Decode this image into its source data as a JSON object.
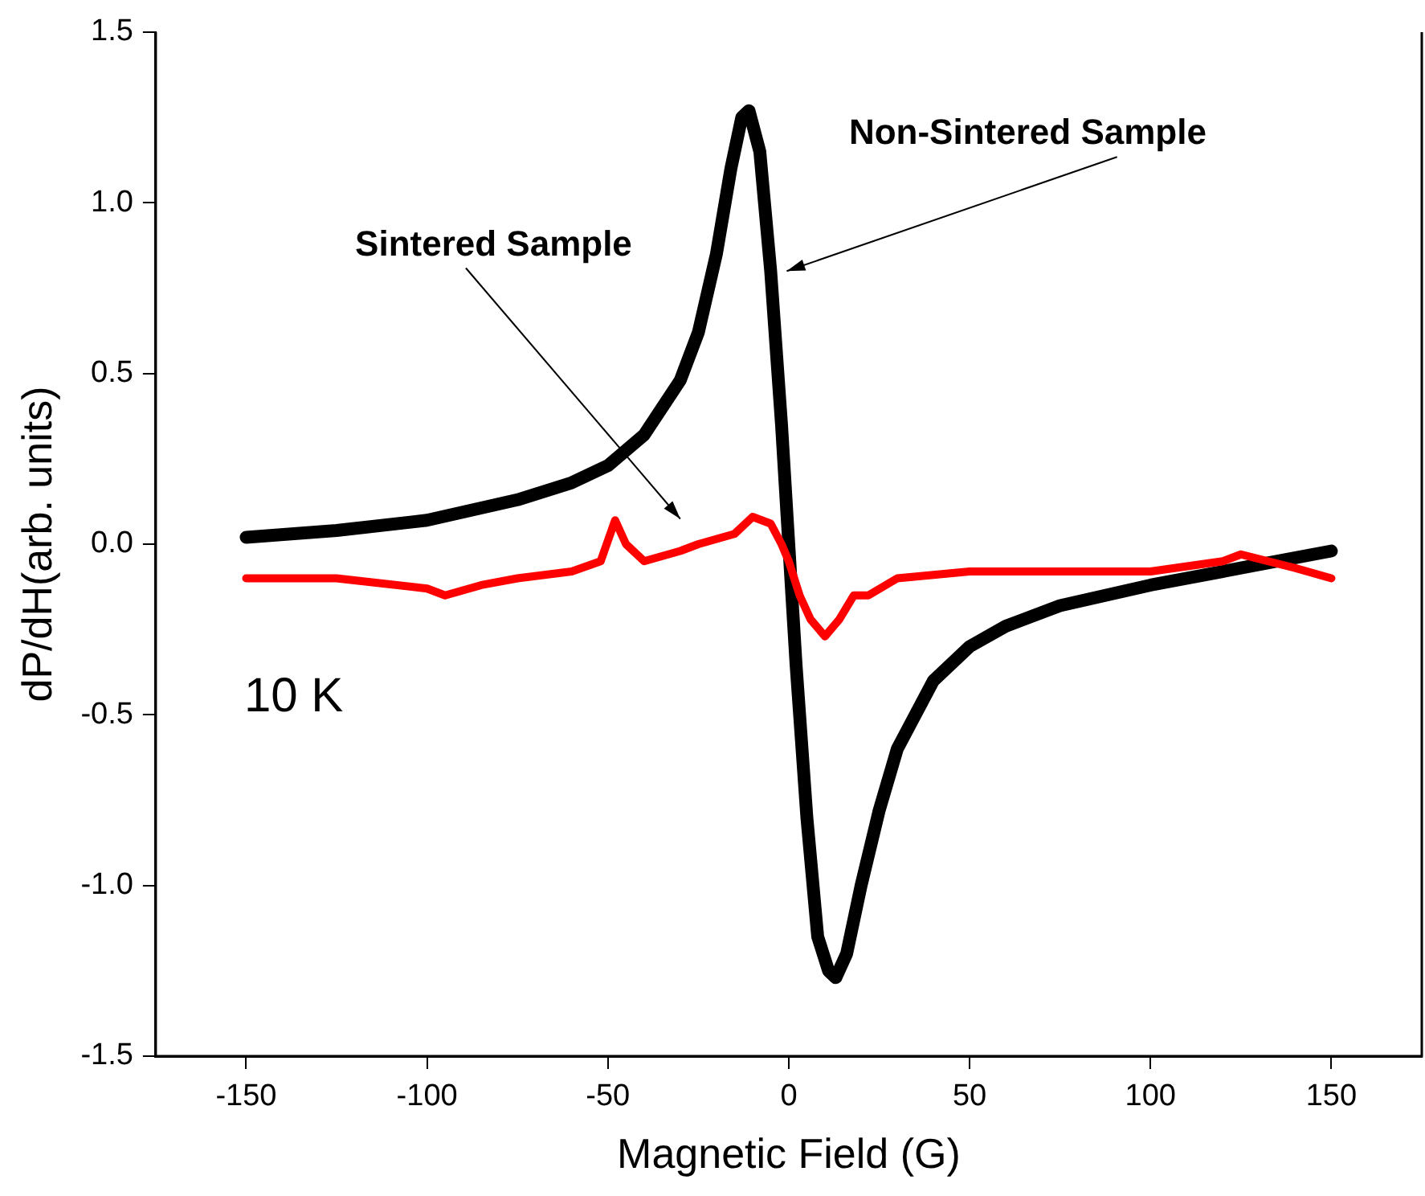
{
  "chart_data": {
    "type": "line",
    "xlabel": "Magnetic Field (G)",
    "ylabel": "dP/dH(arb. units)",
    "xlim": [
      -175,
      175
    ],
    "xticks": [
      -150,
      -100,
      -50,
      0,
      50,
      100,
      150
    ],
    "ylim": [
      -1.5,
      1.5
    ],
    "yticks": [
      {
        "value": -1.5,
        "label": "-1.5"
      },
      {
        "value": -1,
        "label": "-1.0"
      },
      {
        "value": -0.5,
        "label": "-0.5"
      },
      {
        "value": 0,
        "label": "0.0"
      },
      {
        "value": 0.5,
        "label": "0.5"
      },
      {
        "value": 1,
        "label": "1.0"
      },
      {
        "value": 1.5,
        "label": "1.5"
      }
    ],
    "grid": false,
    "legend": false,
    "marker": "none",
    "line_style": "solid",
    "series": [
      {
        "color": "#000000",
        "x": [
          -150,
          -125,
          -100,
          -75,
          -60,
          -50,
          -40,
          -30,
          -25,
          -20,
          -16,
          -13,
          -11,
          -8,
          -5,
          -2,
          0,
          2,
          5,
          8,
          11,
          13,
          16,
          20,
          25,
          30,
          40,
          50,
          60,
          75,
          100,
          125,
          150
        ],
        "values": [
          0.02,
          0.04,
          0.07,
          0.13,
          0.18,
          0.23,
          0.32,
          0.48,
          0.62,
          0.85,
          1.1,
          1.25,
          1.27,
          1.15,
          0.8,
          0.35,
          0.0,
          -0.35,
          -0.8,
          -1.15,
          -1.25,
          -1.27,
          -1.2,
          -1.0,
          -0.78,
          -0.6,
          -0.4,
          -0.3,
          -0.24,
          -0.18,
          -0.12,
          -0.07,
          -0.02
        ]
      },
      {
        "color": "#ff0000",
        "x": [
          -150,
          -125,
          -100,
          -95,
          -85,
          -75,
          -60,
          -52,
          -48,
          -45,
          -40,
          -30,
          -25,
          -15,
          -10,
          -5,
          -2,
          0,
          3,
          6,
          10,
          14,
          18,
          22,
          30,
          50,
          75,
          100,
          120,
          125,
          140,
          150
        ],
        "values": [
          -0.1,
          -0.1,
          -0.13,
          -0.15,
          -0.12,
          -0.1,
          -0.08,
          -0.05,
          0.07,
          0.0,
          -0.05,
          -0.02,
          0.0,
          0.03,
          0.08,
          0.06,
          0.0,
          -0.05,
          -0.15,
          -0.22,
          -0.27,
          -0.22,
          -0.15,
          -0.15,
          -0.1,
          -0.08,
          -0.08,
          -0.08,
          -0.05,
          -0.03,
          -0.07,
          -0.1
        ]
      }
    ],
    "annotations": [
      "Non-Sintered Sample",
      "Sintered Sample",
      "10 K"
    ]
  }
}
